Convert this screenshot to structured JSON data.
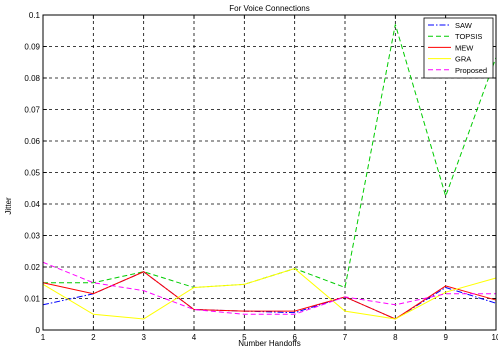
{
  "chart_data": {
    "type": "line",
    "title": "For Voice Connections",
    "xlabel": "Number Handoffs",
    "ylabel": "Jitter",
    "xlim": [
      1,
      10
    ],
    "ylim": [
      0,
      0.1
    ],
    "x": [
      1,
      2,
      3,
      4,
      5,
      6,
      7,
      8,
      9,
      10
    ],
    "x_tick_labels": [
      "1",
      "2",
      "3",
      "4",
      "5",
      "6",
      "7",
      "8",
      "9",
      "10"
    ],
    "y_ticks": [
      0,
      0.01,
      0.02,
      0.03,
      0.04,
      0.05,
      0.06,
      0.07,
      0.08,
      0.09,
      0.1
    ],
    "y_tick_labels": [
      "0",
      "0.01",
      "0.02",
      "0.03",
      "0.04",
      "0.05",
      "0.06",
      "0.07",
      "0.08",
      "0.09",
      "0.1"
    ],
    "grid": true,
    "legend_position": "top-right",
    "series": [
      {
        "name": "SAW",
        "color": "#0000ff",
        "dash": "dashdot",
        "values": [
          0.008,
          0.0115,
          0.0185,
          0.0065,
          0.006,
          0.0055,
          0.0105,
          0.0035,
          0.0135,
          0.0085
        ]
      },
      {
        "name": "TOPSIS",
        "color": "#00cc00",
        "dash": "dashed",
        "values": [
          0.015,
          0.015,
          0.0185,
          0.0135,
          0.0145,
          0.0195,
          0.0135,
          0.097,
          0.0425,
          0.0865
        ]
      },
      {
        "name": "MEW",
        "color": "#ff0000",
        "dash": "solid",
        "values": [
          0.015,
          0.0115,
          0.0185,
          0.0065,
          0.006,
          0.006,
          0.0105,
          0.0035,
          0.014,
          0.0095
        ]
      },
      {
        "name": "GRA",
        "color": "#ffff00",
        "dash": "solid",
        "values": [
          0.0145,
          0.005,
          0.0035,
          0.0135,
          0.0145,
          0.0195,
          0.006,
          0.0035,
          0.012,
          0.0165
        ]
      },
      {
        "name": "Proposed",
        "color": "#ff00ff",
        "dash": "dashed",
        "values": [
          0.0215,
          0.015,
          0.0125,
          0.0065,
          0.005,
          0.005,
          0.0105,
          0.008,
          0.0115,
          0.0115
        ]
      }
    ]
  }
}
